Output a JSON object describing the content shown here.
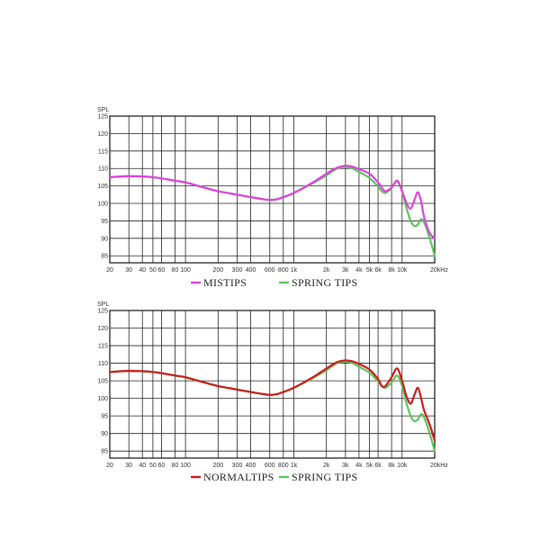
{
  "chart_data": [
    {
      "type": "line",
      "title": "",
      "ylabel": "SPL",
      "xlabel": "",
      "x_scale": "log",
      "xlim": [
        20,
        20000
      ],
      "ylim": [
        83,
        125
      ],
      "y_ticks": [
        85,
        90,
        95,
        100,
        105,
        110,
        115,
        120,
        125
      ],
      "x_ticks": [
        {
          "v": 20,
          "label": "20"
        },
        {
          "v": 30,
          "label": "30"
        },
        {
          "v": 40,
          "label": "40"
        },
        {
          "v": 50,
          "label": "50"
        },
        {
          "v": 60,
          "label": "60"
        },
        {
          "v": 80,
          "label": "80"
        },
        {
          "v": 100,
          "label": "100"
        },
        {
          "v": 200,
          "label": "200"
        },
        {
          "v": 300,
          "label": "300"
        },
        {
          "v": 400,
          "label": "400"
        },
        {
          "v": 600,
          "label": "600"
        },
        {
          "v": 800,
          "label": "800"
        },
        {
          "v": 1000,
          "label": "1k"
        },
        {
          "v": 2000,
          "label": "2k"
        },
        {
          "v": 3000,
          "label": "3k"
        },
        {
          "v": 4000,
          "label": "4k"
        },
        {
          "v": 5000,
          "label": "5k"
        },
        {
          "v": 6000,
          "label": "6k"
        },
        {
          "v": 8000,
          "label": "8k"
        },
        {
          "v": 10000,
          "label": "10k"
        },
        {
          "v": 20000,
          "label": "20kHz"
        }
      ],
      "grid": true,
      "legend_position": "bottom-center",
      "series": [
        {
          "name": "MISTIPS",
          "color": "#e040e0",
          "x": [
            20,
            30,
            50,
            80,
            100,
            150,
            200,
            300,
            400,
            500,
            600,
            700,
            800,
            1000,
            1500,
            2000,
            2500,
            3000,
            3500,
            4000,
            5000,
            6000,
            6500,
            7000,
            8000,
            9000,
            10000,
            11000,
            12000,
            13000,
            14000,
            15000,
            16000,
            18000,
            20000
          ],
          "y": [
            107.5,
            107.8,
            107.5,
            106.5,
            106,
            104.5,
            103.5,
            102.5,
            101.8,
            101.3,
            101,
            101.2,
            101.8,
            103,
            106,
            108.5,
            110.2,
            110.8,
            110.5,
            109.8,
            108.5,
            106,
            104.5,
            103.5,
            104.5,
            106.5,
            103.5,
            100,
            98.5,
            101,
            103.2,
            100.5,
            96,
            91.5,
            90
          ]
        },
        {
          "name": "SPRING TIPS",
          "color": "#5cc45c",
          "x": [
            20,
            30,
            50,
            80,
            100,
            150,
            200,
            300,
            400,
            500,
            600,
            700,
            800,
            1000,
            1500,
            2000,
            2500,
            3000,
            3500,
            4000,
            5000,
            6000,
            6500,
            7000,
            8000,
            9000,
            10000,
            11000,
            12000,
            13000,
            14000,
            15000,
            16000,
            18000,
            20000
          ],
          "y": [
            107.5,
            107.8,
            107.5,
            106.5,
            106,
            104.5,
            103.5,
            102.5,
            101.8,
            101.3,
            101,
            101.2,
            101.8,
            103,
            105.8,
            108,
            110,
            110.5,
            110,
            109,
            107.3,
            104.8,
            103.5,
            103,
            104.5,
            106.5,
            103.5,
            98.5,
            95,
            93.5,
            94,
            95.5,
            94.5,
            90,
            85
          ]
        }
      ]
    },
    {
      "type": "line",
      "title": "",
      "ylabel": "SPL",
      "xlabel": "",
      "x_scale": "log",
      "xlim": [
        20,
        20000
      ],
      "ylim": [
        83,
        125
      ],
      "y_ticks": [
        85,
        90,
        95,
        100,
        105,
        110,
        115,
        120,
        125
      ],
      "x_ticks": [
        {
          "v": 20,
          "label": "20"
        },
        {
          "v": 30,
          "label": "30"
        },
        {
          "v": 40,
          "label": "40"
        },
        {
          "v": 50,
          "label": "50"
        },
        {
          "v": 60,
          "label": "60"
        },
        {
          "v": 80,
          "label": "80"
        },
        {
          "v": 100,
          "label": "100"
        },
        {
          "v": 200,
          "label": "200"
        },
        {
          "v": 300,
          "label": "300"
        },
        {
          "v": 400,
          "label": "400"
        },
        {
          "v": 600,
          "label": "600"
        },
        {
          "v": 800,
          "label": "800"
        },
        {
          "v": 1000,
          "label": "1k"
        },
        {
          "v": 2000,
          "label": "2k"
        },
        {
          "v": 3000,
          "label": "3k"
        },
        {
          "v": 4000,
          "label": "4k"
        },
        {
          "v": 5000,
          "label": "5k"
        },
        {
          "v": 6000,
          "label": "6k"
        },
        {
          "v": 8000,
          "label": "8k"
        },
        {
          "v": 10000,
          "label": "10k"
        },
        {
          "v": 20000,
          "label": "20kHz"
        }
      ],
      "grid": true,
      "legend_position": "bottom-center",
      "series": [
        {
          "name": "NORMALTIPS",
          "color": "#cc1a1a",
          "x": [
            20,
            30,
            50,
            80,
            100,
            150,
            200,
            300,
            400,
            500,
            600,
            700,
            800,
            1000,
            1500,
            2000,
            2500,
            3000,
            3500,
            4000,
            5000,
            6000,
            6500,
            7000,
            8000,
            9000,
            10000,
            11000,
            12000,
            13000,
            14000,
            15000,
            16000,
            18000,
            20000
          ],
          "y": [
            107.5,
            107.8,
            107.5,
            106.5,
            106,
            104.5,
            103.5,
            102.5,
            101.8,
            101.3,
            101,
            101.2,
            101.8,
            103,
            106,
            108.5,
            110.3,
            110.8,
            110.5,
            109.8,
            108.2,
            105.5,
            103.5,
            103.5,
            106,
            108.5,
            105,
            100.5,
            98.5,
            101,
            103,
            100,
            96.5,
            92.5,
            88
          ]
        },
        {
          "name": "SPRING TIPS",
          "color": "#5cc45c",
          "x": [
            20,
            30,
            50,
            80,
            100,
            150,
            200,
            300,
            400,
            500,
            600,
            700,
            800,
            1000,
            1500,
            2000,
            2500,
            3000,
            3500,
            4000,
            5000,
            6000,
            6500,
            7000,
            8000,
            9000,
            10000,
            11000,
            12000,
            13000,
            14000,
            15000,
            16000,
            18000,
            20000
          ],
          "y": [
            107.5,
            107.8,
            107.5,
            106.5,
            106,
            104.5,
            103.5,
            102.5,
            101.8,
            101.3,
            101,
            101.2,
            101.8,
            103,
            105.8,
            108,
            110,
            110.5,
            110,
            109,
            107.3,
            104.8,
            103.5,
            103,
            104.5,
            106.5,
            103.5,
            98.5,
            95,
            93.5,
            94,
            95.5,
            94.5,
            90,
            85
          ]
        }
      ]
    }
  ]
}
